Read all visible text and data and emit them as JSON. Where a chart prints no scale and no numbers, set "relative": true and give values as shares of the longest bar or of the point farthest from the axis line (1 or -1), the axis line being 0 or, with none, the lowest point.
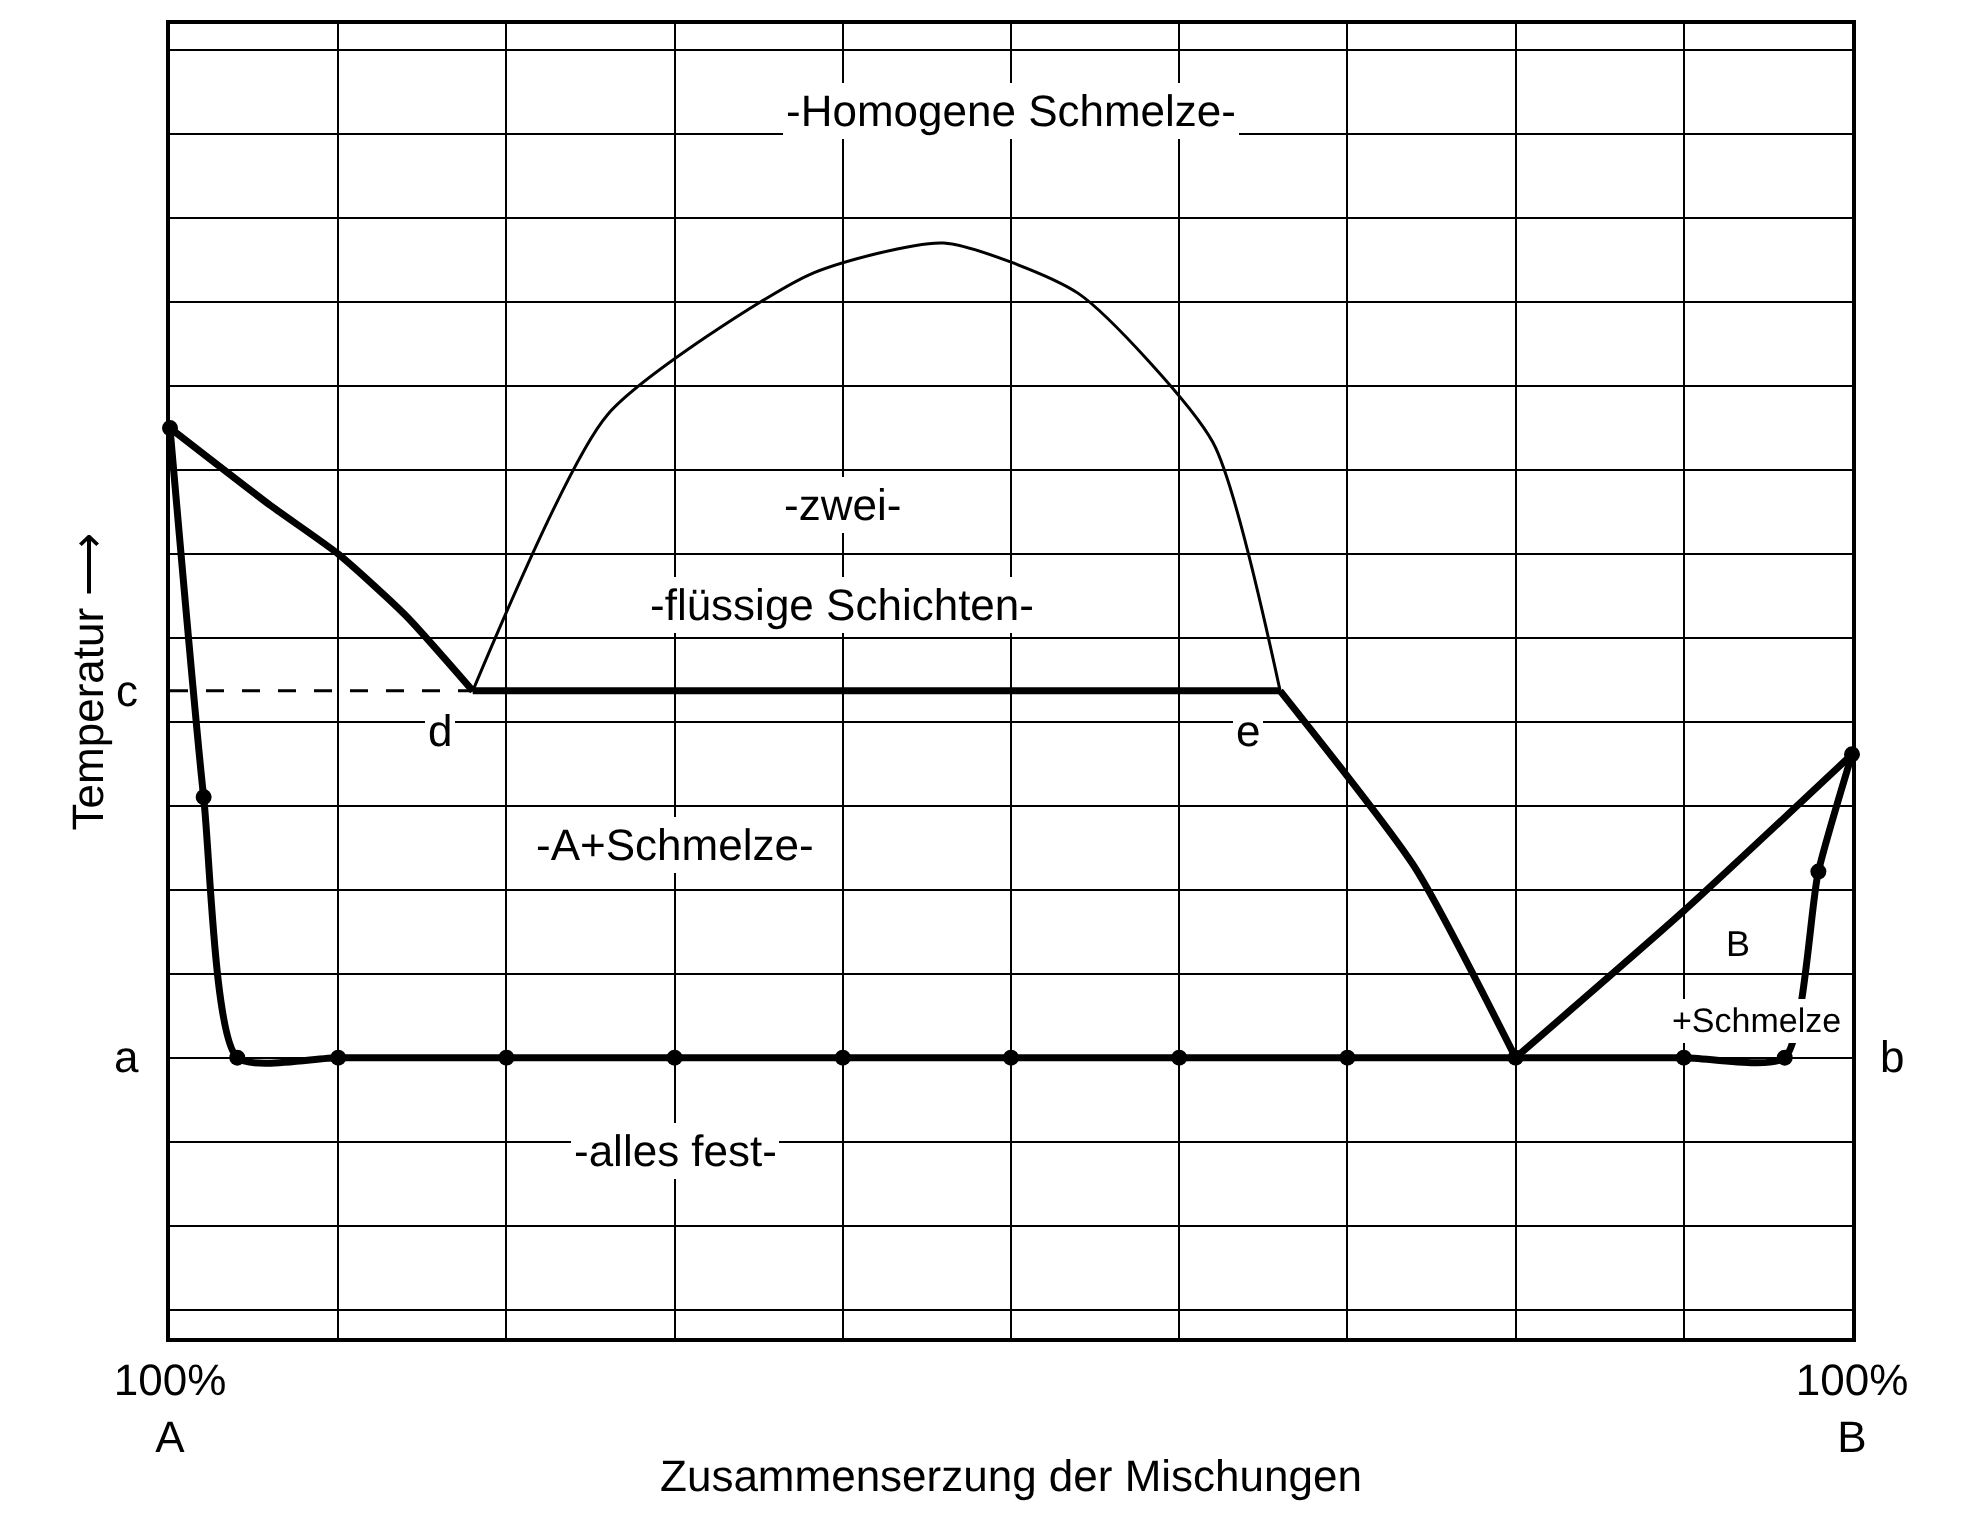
{
  "chart_data": {
    "type": "line",
    "relative": true,
    "xlabel": "Zusammenserzung der Mischungen",
    "ylabel": "Temperatur ⟶",
    "categories": [
      "100%\nA",
      null,
      null,
      null,
      null,
      null,
      null,
      null,
      null,
      null,
      null,
      null,
      null,
      null,
      null,
      null,
      null,
      null,
      null,
      null,
      null,
      null,
      null,
      null,
      null,
      null,
      null,
      null,
      null,
      null,
      null,
      null,
      null,
      null,
      null,
      null,
      null,
      null,
      null,
      null,
      null,
      null,
      null,
      null,
      null,
      null,
      null,
      null,
      null,
      null,
      "100%\nB"
    ],
    "grid": true,
    "series": [
      {
        "color": "#000000",
        "values": [
          0.831,
          null,
          null,
          0.76,
          null,
          0.716,
          null,
          0.66,
          null,
          0.591,
          null,
          null,
          null,
          null,
          null,
          null,
          null,
          null,
          null,
          null,
          null,
          null,
          null,
          null,
          null,
          null,
          null,
          null,
          null,
          null,
          null,
          null,
          null,
          null,
          null,
          null,
          null,
          null,
          null,
          null,
          null,
          null,
          null,
          null,
          null,
          null,
          null,
          null,
          null,
          null,
          null
        ]
      },
      {
        "color": "#000000",
        "values": [
          null,
          null,
          null,
          null,
          null,
          null,
          null,
          null,
          null,
          0.591,
          null,
          null,
          null,
          null,
          null,
          null,
          null,
          null,
          null,
          null,
          null,
          null,
          null,
          null,
          null,
          null,
          null,
          null,
          null,
          null,
          null,
          null,
          null,
          0.591,
          null,
          null,
          null,
          null,
          null,
          null,
          null,
          null,
          null,
          null,
          null,
          null,
          null,
          null,
          null,
          null,
          null
        ]
      },
      {
        "color": "#000000",
        "values": [
          null,
          null,
          null,
          null,
          null,
          null,
          null,
          null,
          null,
          null,
          null,
          null,
          null,
          null,
          null,
          null,
          null,
          null,
          null,
          null,
          null,
          null,
          null,
          null,
          null,
          null,
          null,
          null,
          null,
          null,
          null,
          null,
          null,
          0.591,
          null,
          null,
          null,
          0.43,
          null,
          null,
          0.256,
          null,
          null,
          null,
          null,
          null,
          null,
          null,
          null,
          null,
          null
        ]
      },
      {
        "color": "#000000",
        "values": [
          null,
          null,
          null,
          null,
          null,
          null,
          null,
          null,
          null,
          null,
          null,
          null,
          null,
          null,
          null,
          null,
          null,
          null,
          null,
          null,
          null,
          null,
          null,
          null,
          null,
          null,
          null,
          null,
          null,
          null,
          null,
          null,
          null,
          null,
          null,
          null,
          null,
          null,
          null,
          null,
          0.256,
          null,
          null,
          null,
          null,
          0.39,
          null,
          null,
          null,
          null,
          0.533
        ]
      },
      {
        "color": "#000000",
        "values": [
          null,
          null,
          null,
          null,
          null,
          null,
          null,
          null,
          null,
          0.591,
          null,
          null,
          null,
          0.843,
          null,
          null,
          null,
          null,
          null,
          0.971,
          null,
          null,
          null,
          1.0,
          null,
          null,
          null,
          0.954,
          null,
          null,
          null,
          0.818,
          null,
          0.591,
          null,
          null,
          null,
          null,
          null,
          null,
          null,
          null,
          null,
          null,
          null,
          null,
          null,
          null,
          null,
          null,
          null
        ]
      },
      {
        "color": "#000000",
        "marker": "circle",
        "values": [
          0.831,
          0.494,
          0.256,
          null,
          null,
          0.256,
          null,
          null,
          null,
          null,
          0.256,
          null,
          null,
          null,
          null,
          0.256,
          null,
          null,
          null,
          null,
          0.256,
          null,
          null,
          null,
          null,
          0.256,
          null,
          null,
          null,
          null,
          0.256,
          null,
          null,
          null,
          null,
          0.256,
          null,
          null,
          null,
          null,
          0.256,
          null,
          null,
          null,
          null,
          0.256,
          null,
          null,
          0.256,
          0.426,
          0.533
        ]
      },
      {
        "color": "#000000",
        "line_style": "dashed",
        "values": [
          0.591,
          null,
          null,
          null,
          null,
          null,
          null,
          null,
          null,
          0.591,
          null,
          null,
          null,
          null,
          null,
          null,
          null,
          null,
          null,
          null,
          null,
          null,
          null,
          null,
          null,
          null,
          null,
          null,
          null,
          null,
          null,
          null,
          null,
          null,
          null,
          null,
          null,
          null,
          null,
          null,
          null,
          null,
          null,
          null,
          null,
          null,
          null,
          null,
          null,
          null,
          null
        ]
      }
    ],
    "annotations": [
      "-Homogene Schmelze-",
      "-zwei-",
      "-flüssige Schichten-",
      "-A+Schmelze-",
      "B",
      "+Schmelze",
      "-alles fest-",
      "a",
      "b",
      "c",
      "d",
      "e"
    ]
  }
}
